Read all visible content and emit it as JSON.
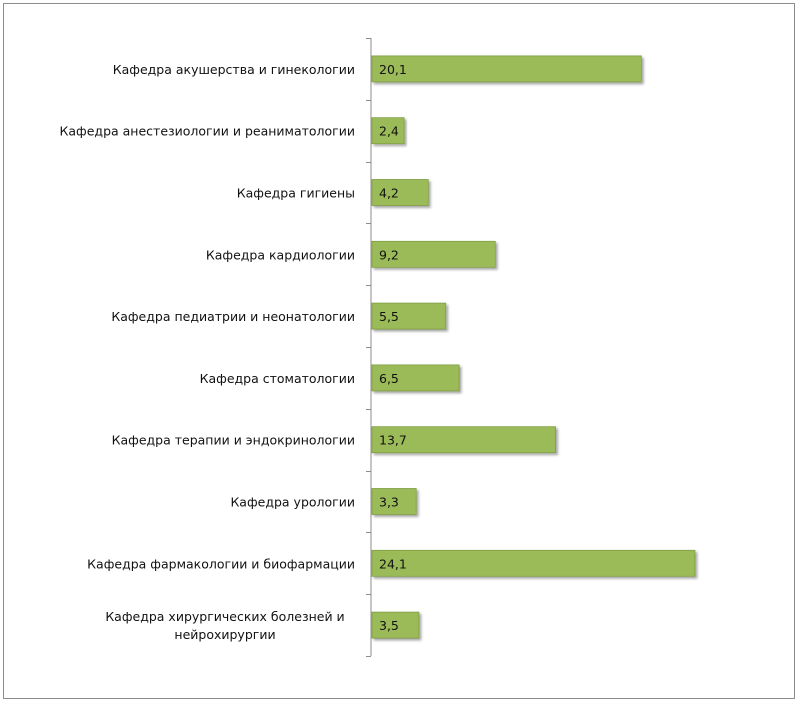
{
  "chart_data": {
    "type": "bar",
    "orientation": "horizontal",
    "title": "",
    "xlabel": "",
    "ylabel": "",
    "categories": [
      "Кафедра акушерства и гинекологии",
      "Кафедра анестезиологии и реаниматологии",
      "Кафедра гигиены",
      "Кафедра кардиологии",
      "Кафедра педиатрии и неонатологии",
      "Кафедра стоматологии",
      "Кафедра терапии и эндокринологии",
      "Кафедра урологии",
      "Кафедра фармакологии и биофармации",
      "Кафедра хирургических болезней и нейрохирургии"
    ],
    "values": [
      20.1,
      2.4,
      4.2,
      9.2,
      5.5,
      6.5,
      13.7,
      3.3,
      24.1,
      3.5
    ],
    "value_labels": [
      "20,1",
      "2,4",
      "4,2",
      "9,2",
      "5,5",
      "6,5",
      "13,7",
      "3,3",
      "24,1",
      "3,5"
    ],
    "xlim": [
      0,
      25
    ],
    "grid": false,
    "legend": "none",
    "bar_color": "#9bbb59",
    "bar_border_color": "#7f9e45"
  }
}
